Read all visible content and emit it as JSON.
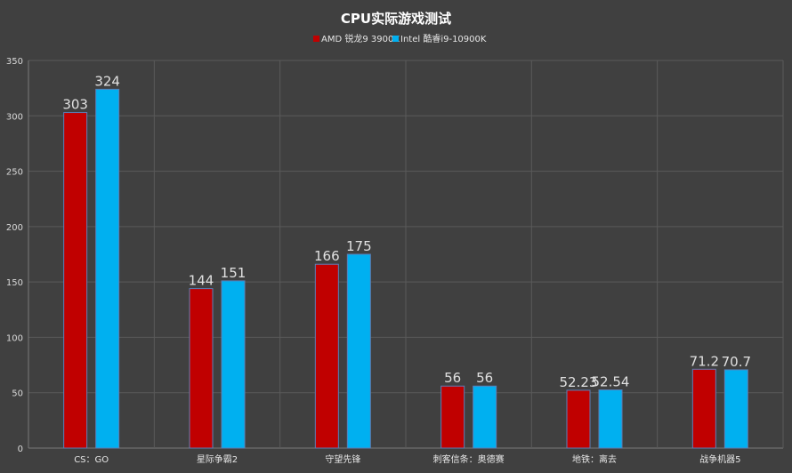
{
  "chart_data": {
    "type": "bar",
    "title": "CPU实际游戏测试",
    "categories": [
      "CS：GO",
      "星际争霸2",
      "守望先锋",
      "刺客信条：奥德赛",
      "地铁：离去",
      "战争机器5"
    ],
    "series": [
      {
        "name": "AMD 锐龙9 3900X",
        "color": "#c00000",
        "values": [
          303,
          144,
          166,
          56,
          52.23,
          71.2
        ]
      },
      {
        "name": "Intel 酷睿i9-10900K",
        "color": "#00b0f0",
        "values": [
          324,
          151,
          175,
          56,
          52.54,
          70.7
        ]
      }
    ],
    "ylim": [
      0,
      350
    ],
    "yticks": [
      0,
      50,
      100,
      150,
      200,
      250,
      300,
      350
    ],
    "grid": true,
    "legend_position": "top-center",
    "data_labels": true
  }
}
